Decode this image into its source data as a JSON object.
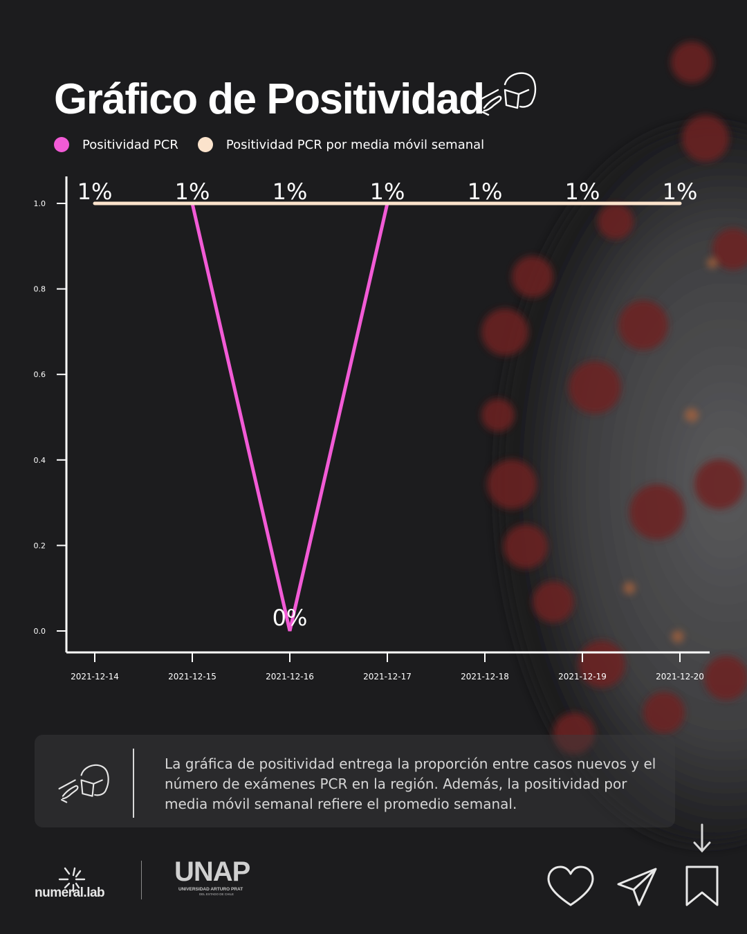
{
  "header": {
    "title": "Gráfico de Positividad"
  },
  "legend": {
    "items": [
      {
        "label": "Positividad PCR",
        "color": "#f25bd6"
      },
      {
        "label": "Positividad PCR por media móvil semanal",
        "color": "#fbe3cc"
      }
    ]
  },
  "chart_data": {
    "type": "line",
    "x": [
      "2021-12-14",
      "2021-12-15",
      "2021-12-16",
      "2021-12-17",
      "2021-12-18",
      "2021-12-19",
      "2021-12-20"
    ],
    "series": [
      {
        "name": "Positividad PCR",
        "color": "#f25bd6",
        "values": [
          null,
          1.0,
          0.0,
          1.0,
          null,
          null,
          null
        ],
        "labels": [
          "",
          "",
          "0%",
          "",
          "",
          "",
          ""
        ]
      },
      {
        "name": "Positividad PCR por media móvil semanal",
        "color": "#fbe3cc",
        "values": [
          1.0,
          1.0,
          1.0,
          1.0,
          1.0,
          1.0,
          1.0
        ],
        "labels": [
          "1%",
          "1%",
          "1%",
          "1%",
          "1%",
          "1%",
          "1%"
        ]
      }
    ],
    "yticks": [
      "0.0",
      "0.2",
      "0.4",
      "0.6",
      "0.8",
      "1.0"
    ],
    "ylim": [
      0,
      1.0
    ],
    "grid": false,
    "legend_position": "top-left"
  },
  "info": {
    "text": "La gráfica de positividad entrega la proporción entre casos nuevos y el número de exámenes PCR en la región. Además, la positividad por media móvil semanal refiere el promedio semanal.",
    "icon": "swab-test-icon"
  },
  "footer": {
    "numeral_logo": "numeral.lab",
    "unap_logo": "UNAP",
    "unap_subtitle": "UNIVERSIDAD ARTURO PRAT",
    "unap_subtitle2": "DEL ESTADO DE CHILE",
    "actions": [
      "heart-icon",
      "send-icon",
      "bookmark-icon"
    ],
    "scroll_hint": "arrow-down-icon"
  }
}
